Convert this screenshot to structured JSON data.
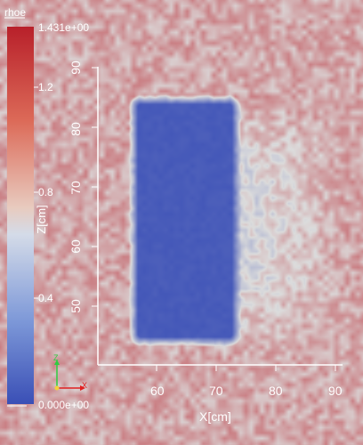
{
  "colorbar": {
    "title": "rhoe",
    "max_label": "1.431e+00",
    "min_label": "0.000e+00",
    "ticks": [
      "1.2",
      "0.8",
      "0.4"
    ]
  },
  "axes": {
    "x_label": "X[cm]",
    "z_label": "Z[cm]",
    "x_ticks": [
      "60",
      "70",
      "80",
      "90"
    ],
    "z_ticks": [
      "90",
      "80",
      "70",
      "60",
      "50"
    ]
  },
  "orientation": {
    "z": "Z",
    "x": "X"
  },
  "colors": {
    "high": "#b8202a",
    "mid": "#dcdcdc",
    "low": "#3a4fb6",
    "background_field": "#d8775f",
    "block": "#3449aa"
  }
}
